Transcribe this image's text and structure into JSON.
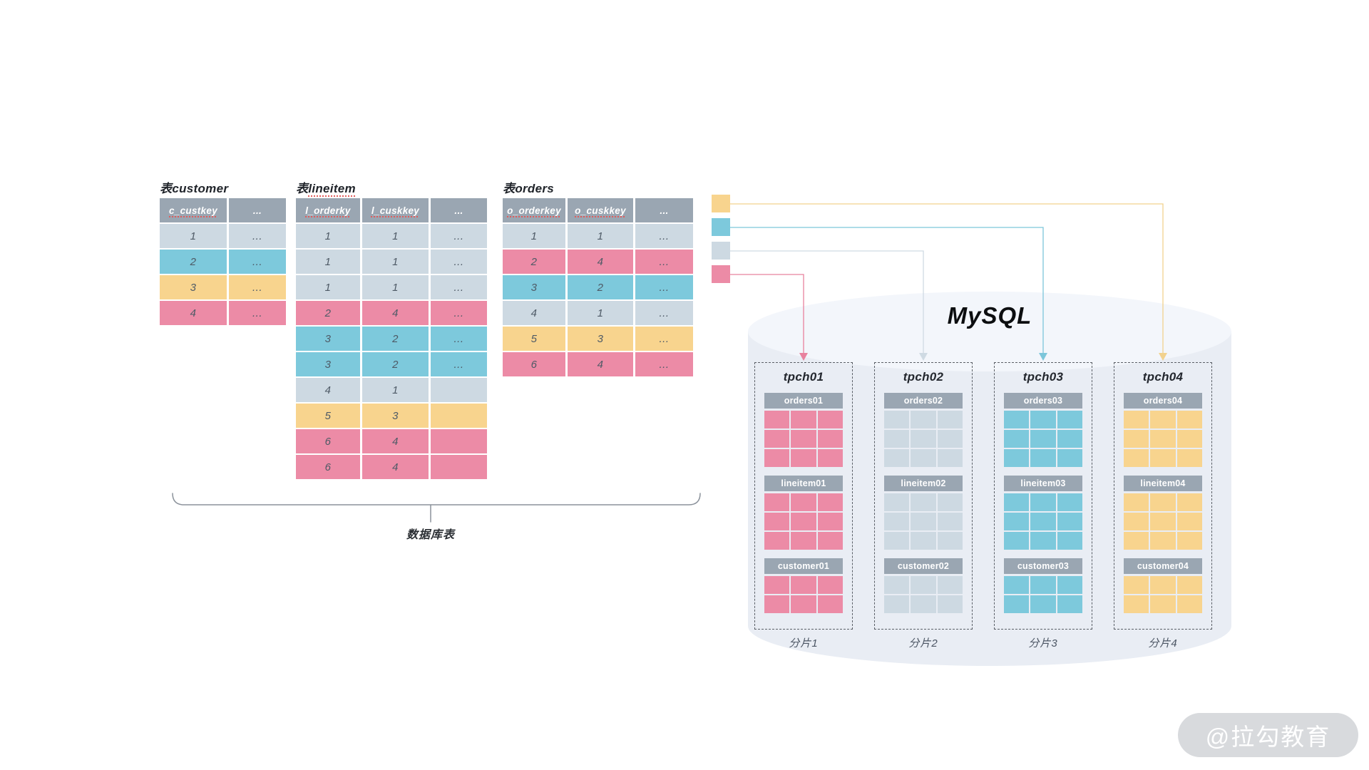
{
  "colors": {
    "header": "#9aa6b2",
    "light": "#cdd9e2",
    "cyan": "#7dc9dc",
    "yellow": "#f8d48e",
    "pink": "#ec8ba6",
    "arrow_yellow": "#f2d28e",
    "arrow_cyan": "#7cc6da",
    "arrow_light": "#cfdae3",
    "arrow_pink": "#e8829e",
    "underline_red": "#e25c5c",
    "cylinder_body": "#e9edf4",
    "cylinder_top": "#f3f6fb",
    "watermark_bg": "#d8dadd"
  },
  "source_tables": [
    {
      "id": "customer",
      "title_cjk": "表",
      "title_latin": "customer",
      "title_underlined": false,
      "columns": [
        "c_custkey",
        "..."
      ],
      "rows": [
        {
          "color": "light",
          "cells": [
            "1",
            "..."
          ]
        },
        {
          "color": "cyan",
          "cells": [
            "2",
            "..."
          ]
        },
        {
          "color": "yellow",
          "cells": [
            "3",
            "..."
          ]
        },
        {
          "color": "pink",
          "cells": [
            "4",
            "..."
          ]
        }
      ]
    },
    {
      "id": "lineitem",
      "title_cjk": "表",
      "title_latin": "lineitem",
      "title_underlined": true,
      "columns": [
        "l_orderky",
        "l_cuskkey",
        "..."
      ],
      "rows": [
        {
          "color": "light",
          "cells": [
            "1",
            "1",
            "..."
          ]
        },
        {
          "color": "light",
          "cells": [
            "1",
            "1",
            "..."
          ]
        },
        {
          "color": "light",
          "cells": [
            "1",
            "1",
            "..."
          ]
        },
        {
          "color": "pink",
          "cells": [
            "2",
            "4",
            "..."
          ]
        },
        {
          "color": "cyan",
          "cells": [
            "3",
            "2",
            "..."
          ]
        },
        {
          "color": "cyan",
          "cells": [
            "3",
            "2",
            "..."
          ]
        },
        {
          "color": "light",
          "cells": [
            "4",
            "1",
            ""
          ]
        },
        {
          "color": "yellow",
          "cells": [
            "5",
            "3",
            ""
          ]
        },
        {
          "color": "pink",
          "cells": [
            "6",
            "4",
            ""
          ]
        },
        {
          "color": "pink",
          "cells": [
            "6",
            "4",
            ""
          ]
        }
      ]
    },
    {
      "id": "orders",
      "title_cjk": "表",
      "title_latin": "orders",
      "title_underlined": false,
      "columns": [
        "o_orderkey",
        "o_cuskkey",
        "..."
      ],
      "rows": [
        {
          "color": "light",
          "cells": [
            "1",
            "1",
            "..."
          ]
        },
        {
          "color": "pink",
          "cells": [
            "2",
            "4",
            "..."
          ]
        },
        {
          "color": "cyan",
          "cells": [
            "3",
            "2",
            "..."
          ]
        },
        {
          "color": "light",
          "cells": [
            "4",
            "1",
            "..."
          ]
        },
        {
          "color": "yellow",
          "cells": [
            "5",
            "3",
            "..."
          ]
        },
        {
          "color": "pink",
          "cells": [
            "6",
            "4",
            "..."
          ]
        }
      ]
    }
  ],
  "brace_label": "数据库表",
  "legend": [
    {
      "color": "yellow"
    },
    {
      "color": "cyan"
    },
    {
      "color": "light"
    },
    {
      "color": "pink"
    }
  ],
  "mysql": {
    "label": "MySQL",
    "shards": [
      {
        "name": "tpch01",
        "color": "pink",
        "caption": "分片1",
        "tables": [
          {
            "label": "orders01",
            "rows": 3
          },
          {
            "label": "lineitem01",
            "rows": 3
          },
          {
            "label": "customer01",
            "rows": 2
          }
        ]
      },
      {
        "name": "tpch02",
        "color": "light",
        "caption": "分片2",
        "tables": [
          {
            "label": "orders02",
            "rows": 3
          },
          {
            "label": "lineitem02",
            "rows": 3
          },
          {
            "label": "customer02",
            "rows": 2
          }
        ]
      },
      {
        "name": "tpch03",
        "color": "cyan",
        "caption": "分片3",
        "tables": [
          {
            "label": "orders03",
            "rows": 3
          },
          {
            "label": "lineitem03",
            "rows": 3
          },
          {
            "label": "customer03",
            "rows": 2
          }
        ]
      },
      {
        "name": "tpch04",
        "color": "yellow",
        "caption": "分片4",
        "tables": [
          {
            "label": "orders04",
            "rows": 3
          },
          {
            "label": "lineitem04",
            "rows": 3
          },
          {
            "label": "customer04",
            "rows": 2
          }
        ]
      }
    ]
  },
  "watermark": "@拉勾教育"
}
